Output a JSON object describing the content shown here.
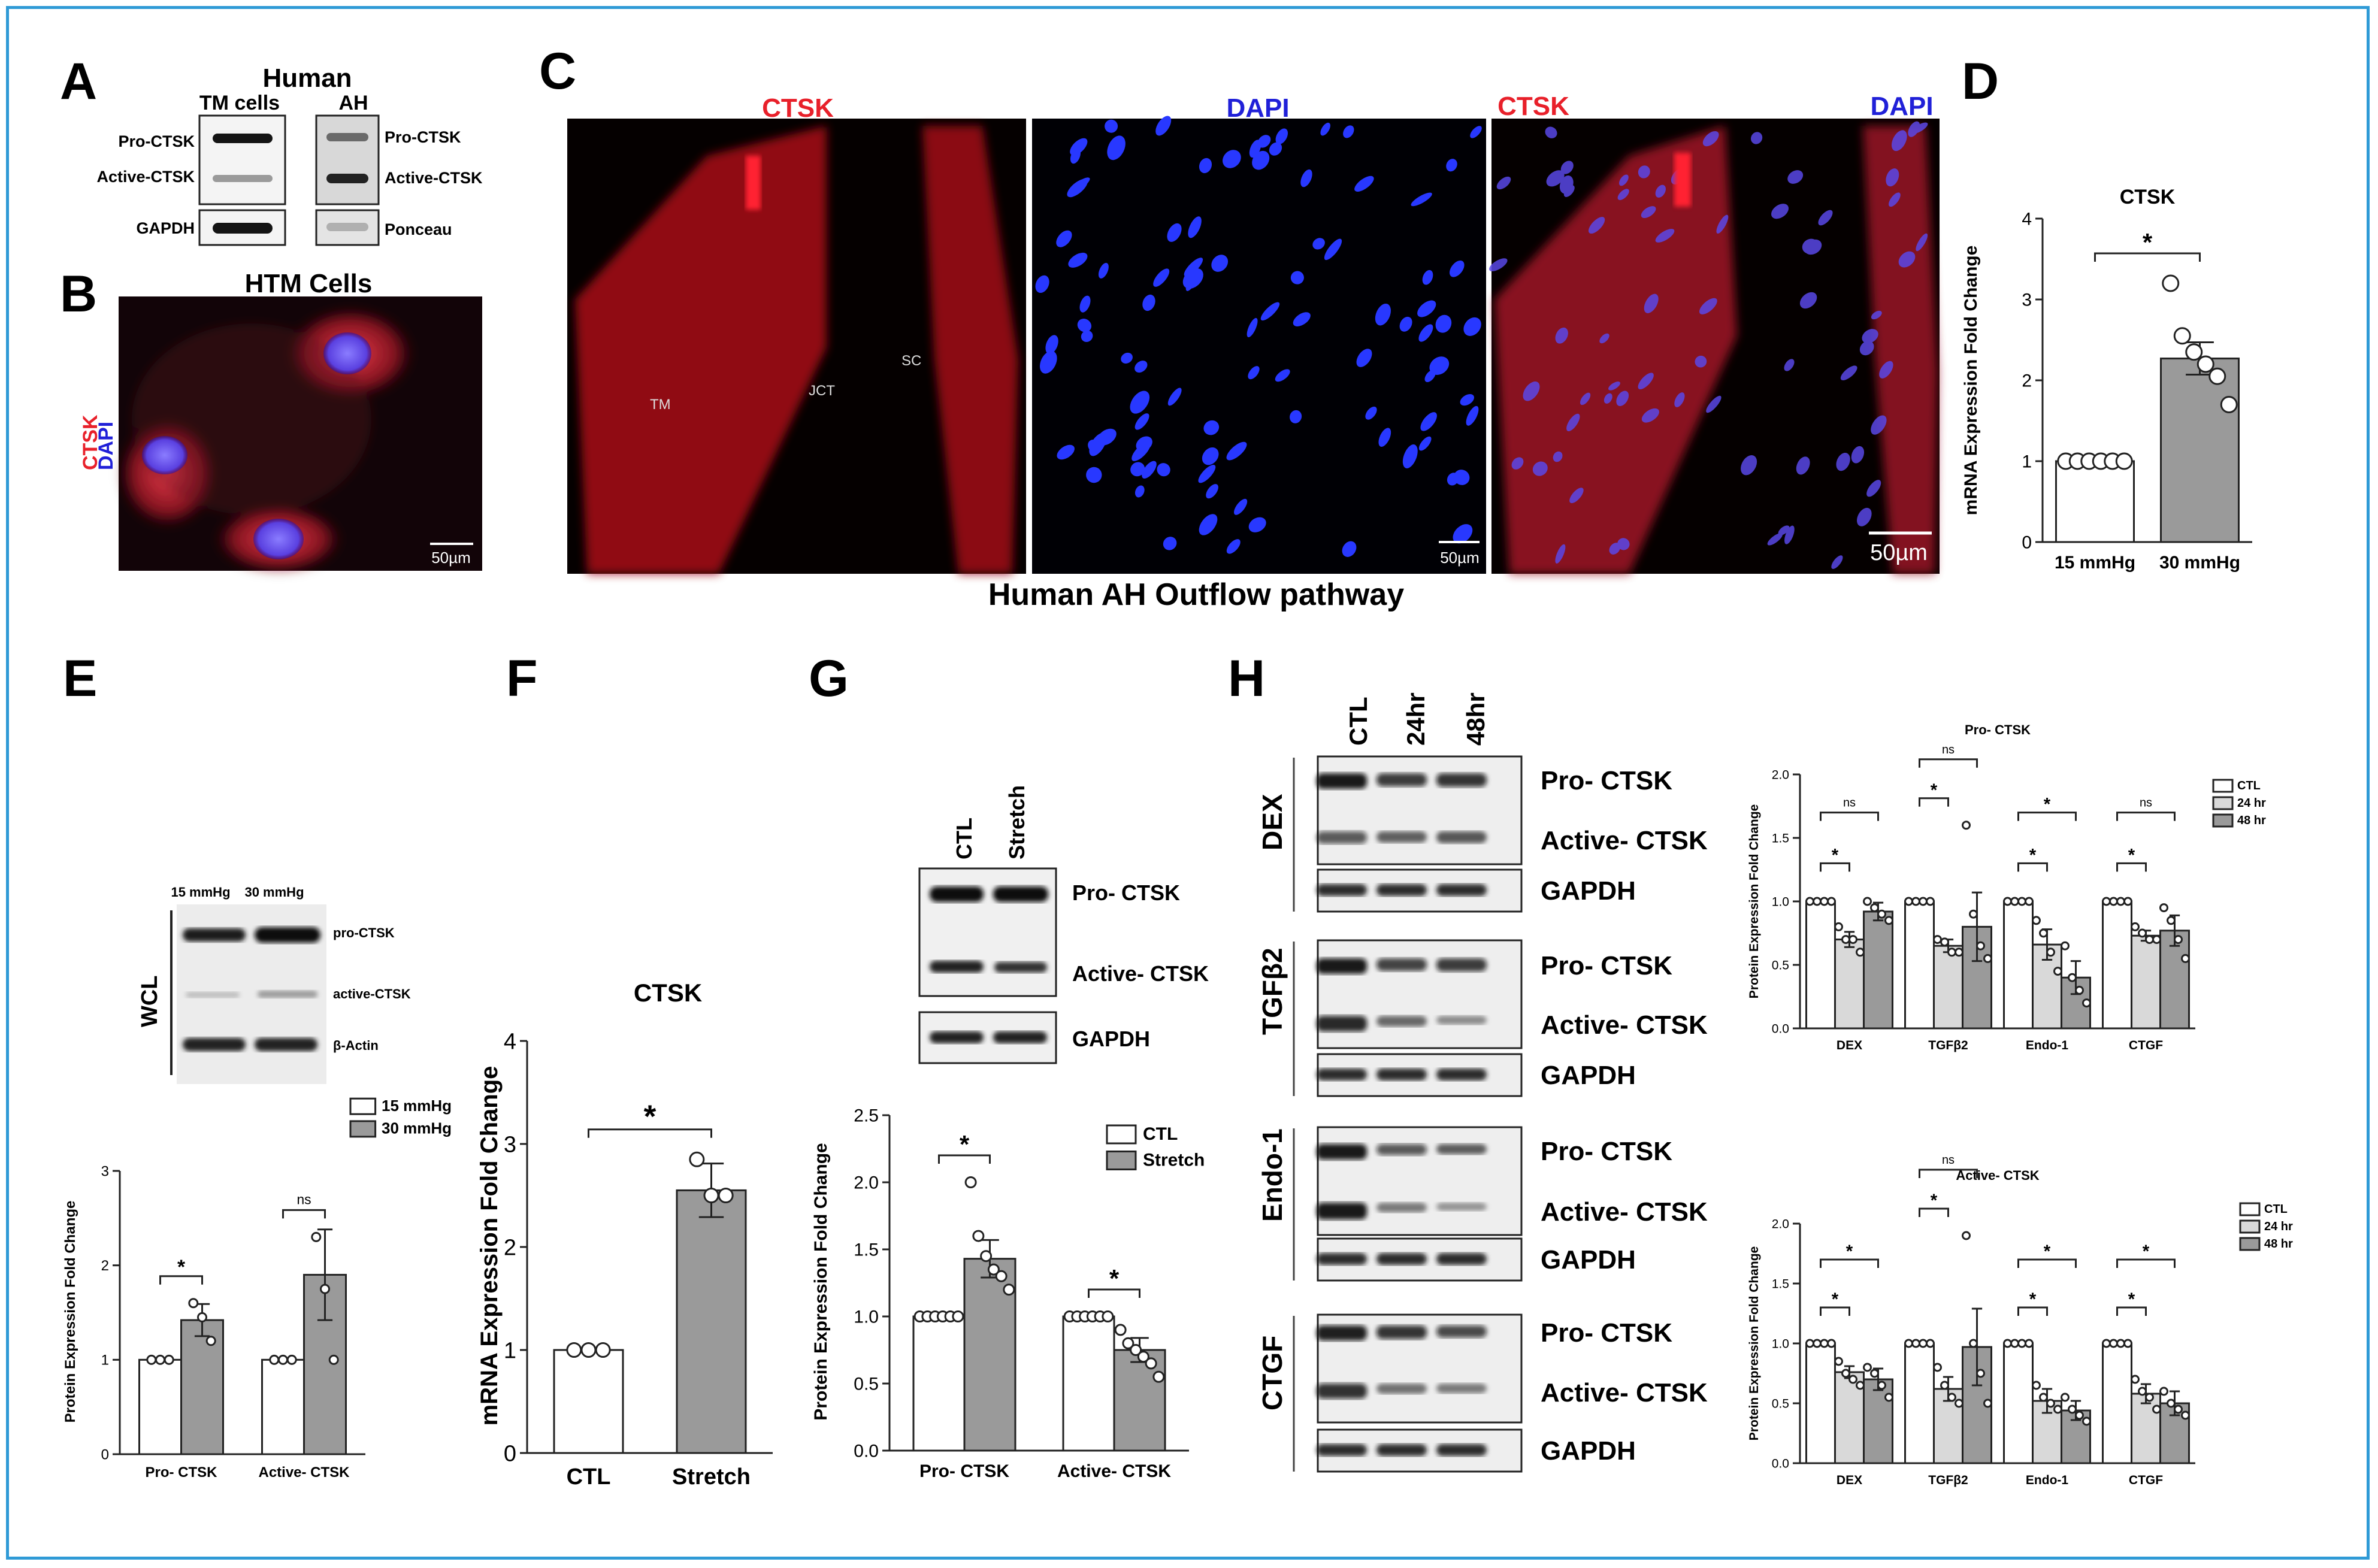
{
  "panels": {
    "A": {
      "letter": "A",
      "header": "Human",
      "col_tm": "TM cells",
      "col_ah": "AH",
      "tm_labels": [
        "Pro-CTSK",
        "Active-CTSK",
        "GAPDH"
      ],
      "ah_labels": [
        "Pro-CTSK",
        "Active-CTSK",
        "Ponceau"
      ]
    },
    "B": {
      "letter": "B",
      "title": "HTM Cells",
      "stain_red": "CTSK",
      "stain_blue": "DAPI",
      "scale": "50µm"
    },
    "C": {
      "letter": "C",
      "title_1": "CTSK",
      "title_2": "DAPI",
      "title_3a": "CTSK",
      "title_3b": "DAPI",
      "region_labels": [
        "TM",
        "JCT",
        "SC"
      ],
      "scale_1": "50µm",
      "scale_2": "50µm",
      "caption": "Human AH Outflow pathway"
    },
    "E": {
      "letter": "E",
      "blot_cols": [
        "15 mmHg",
        "30 mmHg"
      ],
      "blot_rows": [
        "pro-CTSK",
        "active-CTSK",
        "β-Actin"
      ],
      "group_label": "WCL"
    },
    "F": {
      "letter": "F"
    },
    "G": {
      "letter": "G",
      "blot_cols": [
        "CTL",
        "Stretch"
      ],
      "blot_rows": [
        "Pro- CTSK",
        "Active- CTSK",
        "GAPDH"
      ]
    },
    "H": {
      "letter": "H",
      "blot_cols": [
        "CTL",
        "24hr",
        "48hr"
      ],
      "treatments": [
        "DEX",
        "TGFβ2",
        "Endo-1",
        "CTGF"
      ],
      "blot_rows": [
        "Pro- CTSK",
        "Active- CTSK",
        "GAPDH"
      ]
    }
  },
  "colors": {
    "white_bar": "#ffffff",
    "dark_bar": "#9a9a9a",
    "mid_bar": "#d9d9d9",
    "frame": "#2f9ad6",
    "ctsk": "#e8202a",
    "dapi": "#2020d8"
  },
  "chart_data": [
    {
      "panel": "D",
      "type": "bar",
      "title": "CTSK",
      "ylabel": "mRNA Expression Fold Change",
      "categories": [
        "15 mmHg",
        "30 mmHg"
      ],
      "ylim": [
        0,
        4
      ],
      "yticks": [
        "0",
        "1",
        "2",
        "3",
        "4"
      ],
      "values": [
        1.0,
        2.27
      ],
      "errors": [
        0,
        0.2
      ],
      "points": [
        [
          1,
          1,
          1,
          1,
          1,
          1
        ],
        [
          3.2,
          2.55,
          2.35,
          2.2,
          2.05,
          1.7
        ]
      ],
      "significance": [
        {
          "from": 0,
          "to": 1,
          "label": "*"
        }
      ],
      "legend": []
    },
    {
      "panel": "E",
      "type": "bar",
      "ylabel": "Protein Expression Fold Change",
      "categories": [
        "Pro- CTSK",
        "Active- CTSK"
      ],
      "series": [
        {
          "name": "15 mmHg",
          "values": [
            1.0,
            1.0
          ],
          "errors": [
            0,
            0
          ]
        },
        {
          "name": "30 mmHg",
          "values": [
            1.42,
            1.9
          ],
          "errors": [
            0.17,
            0.48
          ]
        }
      ],
      "points": [
        [
          [
            1,
            1,
            1
          ],
          [
            1.6,
            1.45,
            1.2
          ]
        ],
        [
          [
            1,
            1,
            1
          ],
          [
            2.3,
            1.75,
            1.0
          ]
        ]
      ],
      "ylim": [
        0,
        3
      ],
      "yticks": [
        "0",
        "1",
        "2",
        "3"
      ],
      "significance": [
        {
          "category": 0,
          "label": "*"
        },
        {
          "category": 1,
          "label": "ns"
        }
      ],
      "legend": [
        "15 mmHg",
        "30 mmHg"
      ]
    },
    {
      "panel": "F",
      "type": "bar",
      "title": "CTSK",
      "ylabel": "mRNA Expression Fold Change",
      "categories": [
        "CTL",
        "Stretch"
      ],
      "values": [
        1.0,
        2.55
      ],
      "errors": [
        0,
        0.26
      ],
      "points": [
        [
          1,
          1,
          1
        ],
        [
          2.85,
          2.5,
          2.5
        ]
      ],
      "ylim": [
        0,
        4
      ],
      "yticks": [
        "0",
        "1",
        "2",
        "3",
        "4"
      ],
      "significance": [
        {
          "from": 0,
          "to": 1,
          "label": "*"
        }
      ],
      "legend": []
    },
    {
      "panel": "G",
      "type": "bar",
      "ylabel": "Protein Expression Fold Change",
      "categories": [
        "Pro- CTSK",
        "Active- CTSK"
      ],
      "series": [
        {
          "name": "CTL",
          "values": [
            1.0,
            1.0
          ],
          "errors": [
            0,
            0
          ]
        },
        {
          "name": "Stretch",
          "values": [
            1.43,
            0.75
          ],
          "errors": [
            0.14,
            0.09
          ]
        }
      ],
      "points": [
        [
          [
            1,
            1,
            1,
            1,
            1,
            1
          ],
          [
            2.0,
            1.6,
            1.45,
            1.35,
            1.3,
            1.2
          ]
        ],
        [
          [
            1,
            1,
            1,
            1,
            1,
            1
          ],
          [
            0.9,
            0.8,
            0.75,
            0.7,
            0.65,
            0.55
          ]
        ]
      ],
      "ylim": [
        0,
        2.5
      ],
      "yticks": [
        "0.0",
        "0.5",
        "1.0",
        "1.5",
        "2.0",
        "2.5"
      ],
      "significance": [
        {
          "category": 0,
          "label": "*"
        },
        {
          "category": 1,
          "label": "*"
        }
      ],
      "legend": [
        "CTL",
        "Stretch"
      ]
    },
    {
      "panel": "H-top",
      "type": "bar",
      "title": "Pro- CTSK",
      "ylabel": "Protein Expression Fold Change",
      "categories": [
        "DEX",
        "TGFβ2",
        "Endo-1",
        "CTGF"
      ],
      "series": [
        {
          "name": "CTL",
          "values": [
            1.0,
            1.0,
            1.0,
            1.0
          ],
          "errors": [
            0,
            0,
            0,
            0
          ]
        },
        {
          "name": "24 hr",
          "values": [
            0.7,
            0.65,
            0.66,
            0.73
          ],
          "errors": [
            0.06,
            0.05,
            0.12,
            0.04
          ]
        },
        {
          "name": "48 hr",
          "values": [
            0.92,
            0.8,
            0.4,
            0.77
          ],
          "errors": [
            0.07,
            0.27,
            0.13,
            0.12
          ]
        }
      ],
      "points": [
        [
          [
            1,
            1,
            1,
            1
          ],
          [
            0.8,
            0.7,
            0.7,
            0.6
          ],
          [
            1.0,
            0.95,
            0.9,
            0.85
          ]
        ],
        [
          [
            1,
            1,
            1,
            1
          ],
          [
            0.7,
            0.68,
            0.6,
            0.6
          ],
          [
            1.6,
            0.9,
            0.65,
            0.55
          ]
        ],
        [
          [
            1,
            1,
            1,
            1
          ],
          [
            0.85,
            0.75,
            0.6,
            0.45
          ],
          [
            0.65,
            0.4,
            0.3,
            0.2
          ]
        ],
        [
          [
            1,
            1,
            1,
            1
          ],
          [
            0.8,
            0.75,
            0.7,
            0.7
          ],
          [
            0.95,
            0.85,
            0.7,
            0.55
          ]
        ]
      ],
      "ylim": [
        0,
        2.0
      ],
      "yticks": [
        "0.0",
        "0.5",
        "1.0",
        "1.5",
        "2.0"
      ],
      "significance": [
        {
          "category": 0,
          "label": "*",
          "level": "short"
        },
        {
          "category": 0,
          "label": "ns",
          "level": "long"
        },
        {
          "category": 1,
          "label": "*",
          "level": "short"
        },
        {
          "category": 1,
          "label": "ns",
          "level": "long"
        },
        {
          "category": 2,
          "label": "*",
          "level": "short"
        },
        {
          "category": 2,
          "label": "*",
          "level": "long"
        },
        {
          "category": 3,
          "label": "*",
          "level": "short"
        },
        {
          "category": 3,
          "label": "ns",
          "level": "long"
        }
      ],
      "legend": [
        "CTL",
        "24 hr",
        "48 hr"
      ]
    },
    {
      "panel": "H-bottom",
      "type": "bar",
      "title": "Active- CTSK",
      "ylabel": "Protein Expression Fold Change",
      "categories": [
        "DEX",
        "TGFβ2",
        "Endo-1",
        "CTGF"
      ],
      "series": [
        {
          "name": "CTL",
          "values": [
            1.0,
            1.0,
            1.0,
            1.0
          ],
          "errors": [
            0,
            0,
            0,
            0
          ]
        },
        {
          "name": "24 hr",
          "values": [
            0.76,
            0.62,
            0.52,
            0.58
          ],
          "errors": [
            0.05,
            0.1,
            0.1,
            0.08
          ]
        },
        {
          "name": "48 hr",
          "values": [
            0.7,
            0.97,
            0.44,
            0.5
          ],
          "errors": [
            0.09,
            0.32,
            0.08,
            0.1
          ]
        }
      ],
      "points": [
        [
          [
            1,
            1,
            1,
            1
          ],
          [
            0.85,
            0.75,
            0.7,
            0.65
          ],
          [
            0.8,
            0.75,
            0.65,
            0.55
          ]
        ],
        [
          [
            1,
            1,
            1,
            1
          ],
          [
            0.8,
            0.65,
            0.55,
            0.5
          ],
          [
            1.9,
            1.0,
            0.75,
            0.5
          ]
        ],
        [
          [
            1,
            1,
            1,
            1
          ],
          [
            0.65,
            0.55,
            0.5,
            0.45
          ],
          [
            0.55,
            0.45,
            0.4,
            0.35
          ]
        ],
        [
          [
            1,
            1,
            1,
            1
          ],
          [
            0.7,
            0.6,
            0.55,
            0.45
          ],
          [
            0.6,
            0.5,
            0.45,
            0.4
          ]
        ]
      ],
      "ylim": [
        0,
        2.0
      ],
      "yticks": [
        "0.0",
        "0.5",
        "1.0",
        "1.5",
        "2.0"
      ],
      "significance": [
        {
          "category": 0,
          "label": "*",
          "level": "short"
        },
        {
          "category": 0,
          "label": "*",
          "level": "long"
        },
        {
          "category": 1,
          "label": "*",
          "level": "short"
        },
        {
          "category": 1,
          "label": "ns",
          "level": "long"
        },
        {
          "category": 2,
          "label": "*",
          "level": "short"
        },
        {
          "category": 2,
          "label": "*",
          "level": "long"
        },
        {
          "category": 3,
          "label": "*",
          "level": "short"
        },
        {
          "category": 3,
          "label": "*",
          "level": "long"
        }
      ],
      "legend": [
        "CTL",
        "24 hr",
        "48 hr"
      ]
    }
  ]
}
